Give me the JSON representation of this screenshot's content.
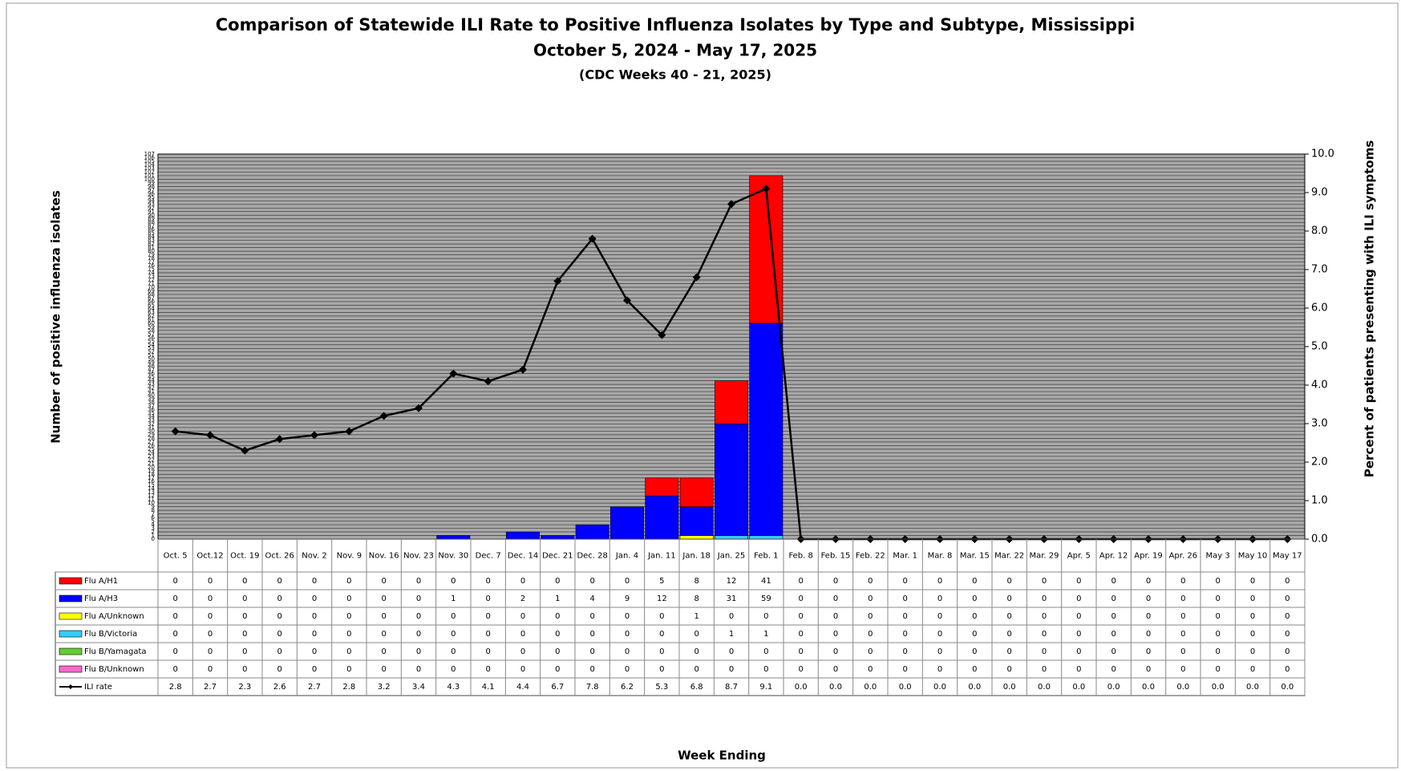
{
  "chart_data": {
    "type": "bar",
    "title": "Comparison of Statewide ILI Rate to Positive Influenza Isolates by Type and Subtype, Mississippi",
    "subtitle": "October 5, 2024 - May 17, 2025",
    "subtitle2": "(CDC Weeks 40 - 21, 2025)",
    "y_label": "Number of positive influenza isolates",
    "y2_label": "Percent of patients presenting with ILI symptoms",
    "x_label": "Week Ending",
    "categories": [
      "Oct. 5",
      "Oct.12",
      "Oct. 19",
      "Oct. 26",
      "Nov. 2",
      "Nov. 9",
      "Nov. 16",
      "Nov. 23",
      "Nov. 30",
      "Dec. 7",
      "Dec. 14",
      "Dec. 21",
      "Dec. 28",
      "Jan. 4",
      "Jan. 11",
      "Jan. 18",
      "Jan. 25",
      "Feb. 1",
      "Feb. 8",
      "Feb. 15",
      "Feb. 22",
      "Mar. 1",
      "Mar. 8",
      "Mar. 15",
      "Mar. 22",
      "Mar. 29",
      "Apr. 5",
      "Apr. 12",
      "Apr. 19",
      "Apr. 26",
      "May 3",
      "May 10",
      "May 17"
    ],
    "series": [
      {
        "name": "Flu A/H1",
        "color": "#ff0000",
        "values": [
          0,
          0,
          0,
          0,
          0,
          0,
          0,
          0,
          0,
          0,
          0,
          0,
          0,
          0,
          5,
          8,
          12,
          41,
          0,
          0,
          0,
          0,
          0,
          0,
          0,
          0,
          0,
          0,
          0,
          0,
          0,
          0,
          0
        ]
      },
      {
        "name": "Flu A/H3",
        "color": "#0000ff",
        "values": [
          0,
          0,
          0,
          0,
          0,
          0,
          0,
          0,
          1,
          0,
          2,
          1,
          4,
          9,
          12,
          8,
          31,
          59,
          0,
          0,
          0,
          0,
          0,
          0,
          0,
          0,
          0,
          0,
          0,
          0,
          0,
          0,
          0
        ]
      },
      {
        "name": "Flu A/Unknown",
        "color": "#ffff00",
        "values": [
          0,
          0,
          0,
          0,
          0,
          0,
          0,
          0,
          0,
          0,
          0,
          0,
          0,
          0,
          0,
          1,
          0,
          0,
          0,
          0,
          0,
          0,
          0,
          0,
          0,
          0,
          0,
          0,
          0,
          0,
          0,
          0,
          0
        ]
      },
      {
        "name": "Flu B/Victoria",
        "color": "#33ccff",
        "values": [
          0,
          0,
          0,
          0,
          0,
          0,
          0,
          0,
          0,
          0,
          0,
          0,
          0,
          0,
          0,
          0,
          1,
          1,
          0,
          0,
          0,
          0,
          0,
          0,
          0,
          0,
          0,
          0,
          0,
          0,
          0,
          0,
          0
        ]
      },
      {
        "name": "Flu B/Yamagata",
        "color": "#66cc33",
        "values": [
          0,
          0,
          0,
          0,
          0,
          0,
          0,
          0,
          0,
          0,
          0,
          0,
          0,
          0,
          0,
          0,
          0,
          0,
          0,
          0,
          0,
          0,
          0,
          0,
          0,
          0,
          0,
          0,
          0,
          0,
          0,
          0,
          0
        ]
      },
      {
        "name": "Flu B/Unknown",
        "color": "#ff66cc",
        "values": [
          0,
          0,
          0,
          0,
          0,
          0,
          0,
          0,
          0,
          0,
          0,
          0,
          0,
          0,
          0,
          0,
          0,
          0,
          0,
          0,
          0,
          0,
          0,
          0,
          0,
          0,
          0,
          0,
          0,
          0,
          0,
          0,
          0
        ]
      },
      {
        "name": "ILI rate",
        "color": "#000000",
        "type": "line",
        "axis": "y2",
        "values": [
          2.8,
          2.7,
          2.3,
          2.6,
          2.7,
          2.8,
          3.2,
          3.4,
          4.3,
          4.1,
          4.4,
          6.7,
          7.8,
          6.2,
          5.3,
          6.8,
          8.7,
          9.1,
          0,
          0,
          0,
          0,
          0,
          0,
          0,
          0,
          0,
          0,
          0,
          0,
          0,
          0,
          0
        ],
        "value_labels": [
          "2.8",
          "2.7",
          "2.3",
          "2.6",
          "2.7",
          "2.8",
          "3.2",
          "3.4",
          "4.3",
          "4.1",
          "4.4",
          "6.7",
          "7.8",
          "6.2",
          "5.3",
          "6.8",
          "8.7",
          "9.1",
          "0.0",
          "0.0",
          "0.0",
          "0.0",
          "0.0",
          "0.0",
          "0.0",
          "0.0",
          "0.0",
          "0.0",
          "0.0",
          "0.0",
          "0.0",
          "0.0",
          "0.0"
        ]
      }
    ],
    "stacked": true,
    "ylim": [
      0,
      107
    ],
    "yticks": [
      0,
      1,
      2,
      3,
      4,
      5,
      6,
      7,
      8,
      9,
      10,
      11,
      12,
      13,
      14,
      15,
      16,
      17,
      18,
      19,
      20,
      21,
      22,
      23,
      24,
      25,
      26,
      27,
      28,
      29,
      30,
      31,
      32,
      33,
      34,
      35,
      36,
      37,
      38,
      39,
      40,
      41,
      42,
      43,
      44,
      45,
      46,
      47,
      48,
      49,
      50,
      51,
      52,
      53,
      54,
      55,
      56,
      57,
      58,
      59,
      60,
      61,
      62,
      63,
      64,
      65,
      66,
      67,
      68,
      69,
      70,
      71,
      72,
      73,
      74,
      75,
      76,
      77,
      78,
      79,
      80,
      81,
      82,
      83,
      84,
      85,
      86,
      87,
      88,
      89,
      90,
      91,
      92,
      93,
      94,
      95,
      96,
      97,
      98,
      99,
      100,
      101,
      102,
      103,
      104,
      105,
      106,
      107
    ],
    "y2lim": [
      0,
      10
    ],
    "y2ticks": [
      {
        "value": 0,
        "label": "0.0"
      },
      {
        "value": 1,
        "label": "1.0"
      },
      {
        "value": 2,
        "label": "2.0"
      },
      {
        "value": 3,
        "label": "3.0"
      },
      {
        "value": 4,
        "label": "4.0"
      },
      {
        "value": 5,
        "label": "5.0"
      },
      {
        "value": 6,
        "label": "6.0"
      },
      {
        "value": 7,
        "label": "7.0"
      },
      {
        "value": 8,
        "label": "8.0"
      },
      {
        "value": 9,
        "label": "9.0"
      },
      {
        "value": 10,
        "label": "10.0"
      }
    ],
    "grid": true
  }
}
